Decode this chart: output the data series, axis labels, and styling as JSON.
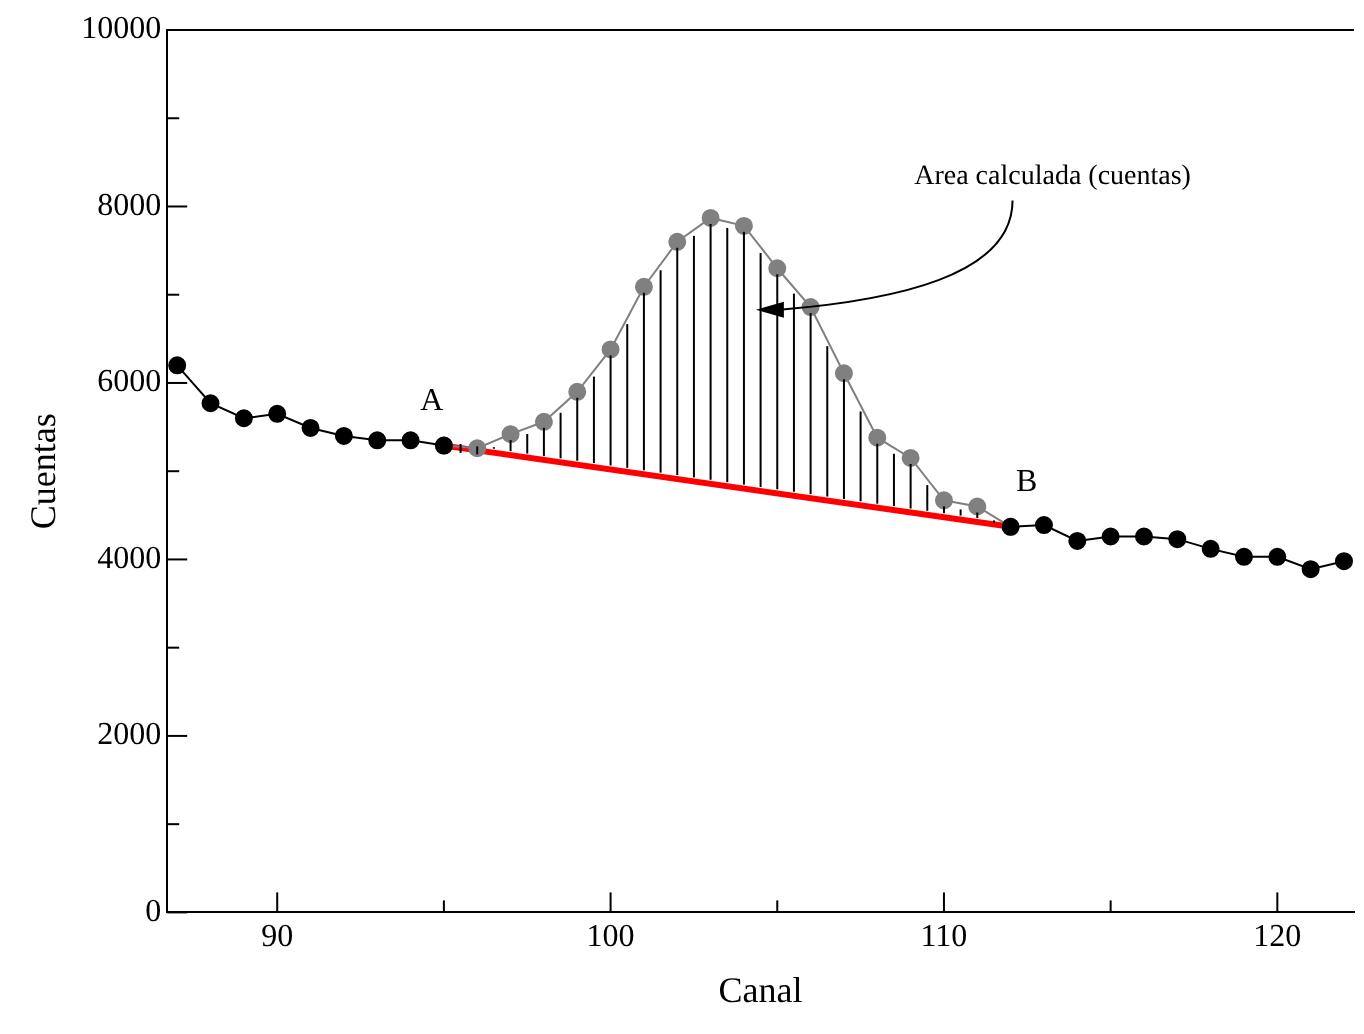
{
  "chart_data": {
    "type": "line",
    "xlabel": "Canal",
    "ylabel": "Cuentas",
    "xlim": [
      86.7,
      122.3
    ],
    "xticks": [
      90,
      {
        "value": 95,
        "label": null
      },
      100,
      {
        "value": 105,
        "label": null
      },
      110,
      {
        "value": 115,
        "label": null
      },
      120
    ],
    "ylim": [
      0,
      10000
    ],
    "yticks": [
      0,
      {
        "value": 1000,
        "label": null
      },
      2000,
      {
        "value": 3000,
        "label": null
      },
      4000,
      {
        "value": 5000,
        "label": null
      },
      6000,
      {
        "value": 7000,
        "label": null
      },
      8000,
      {
        "value": 9000,
        "label": null
      },
      10000
    ],
    "grid": false,
    "legend": false,
    "marker": "circle",
    "line_style": "solid",
    "series": [
      {
        "color": "#000000",
        "x": [
          87,
          88,
          89,
          90,
          91,
          92,
          93,
          94,
          95,
          96,
          97,
          98,
          99,
          100,
          101,
          102,
          103,
          104,
          105,
          106,
          107,
          108,
          109,
          110,
          111,
          112,
          113,
          114,
          115,
          116,
          117,
          118,
          119,
          120,
          121,
          122
        ],
        "values": [
          6200,
          5770,
          5600,
          5650,
          5490,
          5400,
          5350,
          5350,
          5290,
          null,
          null,
          null,
          null,
          null,
          null,
          null,
          null,
          null,
          null,
          null,
          null,
          null,
          null,
          null,
          null,
          4370,
          4390,
          4210,
          4260,
          4260,
          4230,
          4120,
          4030,
          4030,
          3890,
          3980
        ]
      },
      {
        "color": "#808080",
        "x": [
          95,
          96,
          97,
          98,
          99,
          100,
          101,
          102,
          103,
          104,
          105,
          106,
          107,
          108,
          109,
          110,
          111,
          112
        ],
        "values": [
          5290,
          5260,
          5420,
          5560,
          5900,
          6380,
          7090,
          7600,
          7870,
          7780,
          7300,
          6860,
          6110,
          5380,
          5150,
          4670,
          4600,
          4370
        ]
      },
      {
        "color": "#ff0000",
        "marker": "none",
        "x": [
          95,
          112
        ],
        "values": [
          5290,
          4370
        ]
      }
    ],
    "annotations": [
      {
        "text": "A",
        "x": 95,
        "y": 5290
      },
      {
        "text": "B",
        "x": 112,
        "y": 4370
      },
      "Area calculada (cuentas)"
    ]
  }
}
